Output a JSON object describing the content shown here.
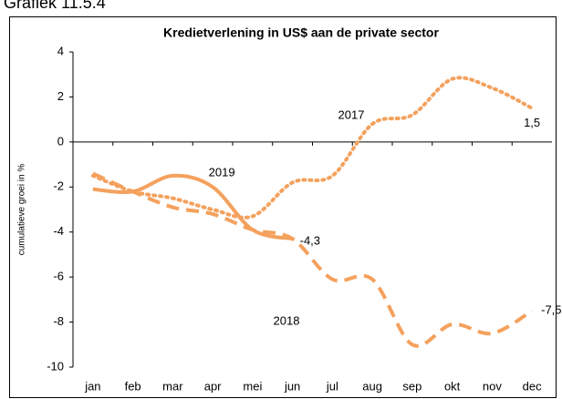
{
  "caption": "Grafiek 11.5.4",
  "chart_data": {
    "type": "line",
    "title": "Kredietverlening in US$ aan de private sector",
    "y_label": "cumulatieve groei in %",
    "categories": [
      "jan",
      "feb",
      "mar",
      "apr",
      "mei",
      "jun",
      "jul",
      "aug",
      "sep",
      "okt",
      "nov",
      "dec"
    ],
    "series": [
      {
        "name": "2019",
        "color": "#f4a15d",
        "dash": "solid",
        "values": [
          -2.1,
          -2.2,
          -1.5,
          -2.0,
          -3.9,
          -4.3,
          null,
          null,
          null,
          null,
          null,
          null
        ],
        "value_labels": [
          null,
          null,
          null,
          null,
          null,
          "-4,3",
          null,
          null,
          null,
          null,
          null,
          null
        ]
      },
      {
        "name": "2017",
        "color": "#f4a15d",
        "dash": "dotted",
        "values": [
          -1.5,
          -2.2,
          -2.5,
          -3.0,
          -3.3,
          -1.8,
          -1.5,
          0.8,
          1.2,
          2.8,
          2.4,
          1.5
        ],
        "value_labels": [
          null,
          null,
          null,
          null,
          null,
          null,
          null,
          null,
          null,
          null,
          null,
          "1,5"
        ]
      },
      {
        "name": "2018",
        "color": "#f4a15d",
        "dash": "dashed",
        "values": [
          -1.4,
          -2.2,
          -2.9,
          -3.2,
          -3.9,
          -4.3,
          -6.1,
          -6.1,
          -9.0,
          -8.1,
          -8.5,
          -7.5
        ],
        "value_labels": [
          null,
          null,
          null,
          null,
          null,
          null,
          null,
          null,
          null,
          null,
          null,
          "-7,5"
        ]
      }
    ],
    "ylim": [
      -10,
      4
    ],
    "yticks": [
      -10,
      -8,
      -6,
      -4,
      -2,
      0,
      2,
      4
    ],
    "grid": false
  }
}
